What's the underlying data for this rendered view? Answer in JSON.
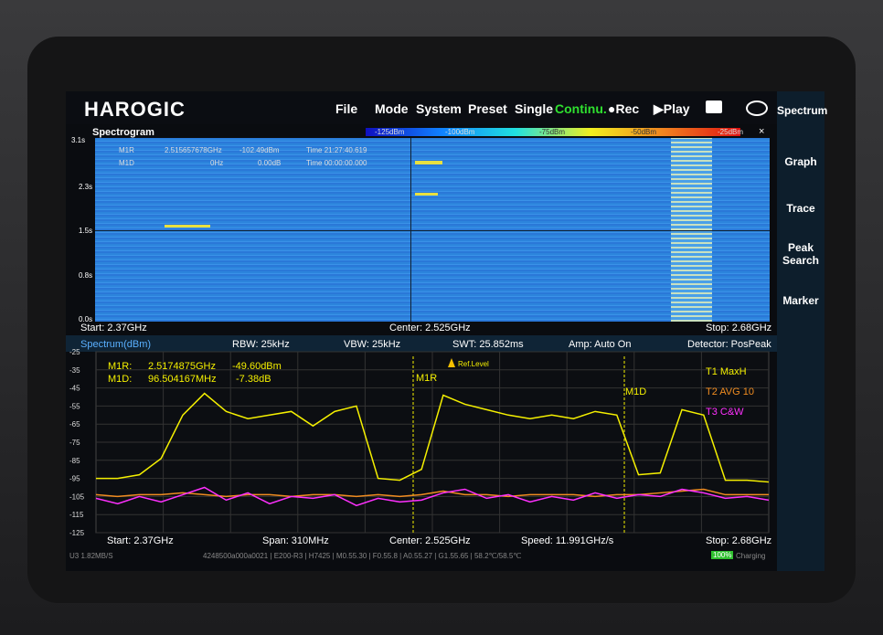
{
  "header": {
    "brand": "HAROGIC",
    "menu": [
      "File",
      "Mode",
      "System",
      "Preset",
      "Single",
      "Continu.",
      "●Rec",
      "▶Play"
    ]
  },
  "sidebar": [
    "Spectrum",
    "Graph",
    "Trace",
    "Peak Search",
    "Marker"
  ],
  "spectrogram": {
    "title": "Spectrogram",
    "close": "×",
    "scale": [
      "-125dBm",
      "-100dBm",
      "-75dBm",
      "-50dBm",
      "-25dBm"
    ],
    "time_ticks": [
      "3.1s",
      "2.3s",
      "1.5s",
      "0.8s",
      "0.0s"
    ],
    "markers": [
      [
        "M1R",
        "2.515657678GHz",
        "-102.49dBm",
        "Time 21:27:40.619"
      ],
      [
        "M1D",
        "0Hz",
        "0.00dB",
        "Time 00:00:00.000"
      ]
    ],
    "start": "Start: 2.37GHz",
    "center": "Center: 2.525GHz",
    "stop": "Stop: 2.68GHz"
  },
  "spectrum": {
    "title": "Spectrum(dBm)",
    "settings": [
      "RBW: 25kHz",
      "VBW: 25kHz",
      "SWT: 25.852ms",
      "Amp: Auto On",
      "Detector: PosPeak"
    ],
    "markers": [
      [
        "M1R:",
        "2.5174875GHz",
        "-49.60dBm"
      ],
      [
        "M1D:",
        "96.504167MHz",
        "-7.38dB"
      ]
    ],
    "marker_tags": [
      "M1R",
      "M1D"
    ],
    "ref_level": "Ref.Level",
    "ylim": [
      -125,
      -25
    ],
    "yticks": [
      -25,
      -35,
      -45,
      -55,
      -65,
      -75,
      -85,
      -95,
      -105,
      -115,
      -125
    ],
    "xlim": [
      2.37,
      2.68
    ],
    "x": [
      2.37,
      2.38,
      2.39,
      2.4,
      2.41,
      2.42,
      2.43,
      2.44,
      2.45,
      2.46,
      2.47,
      2.48,
      2.49,
      2.5,
      2.51,
      2.52,
      2.53,
      2.54,
      2.55,
      2.56,
      2.57,
      2.58,
      2.59,
      2.6,
      2.61,
      2.62,
      2.63,
      2.64,
      2.65,
      2.66,
      2.67,
      2.68
    ],
    "traces": [
      {
        "name": "T1  MaxH",
        "color": "#f5f000",
        "values": [
          -95,
          -95,
          -93,
          -84,
          -60,
          -48,
          -58,
          -62,
          -60,
          -58,
          -66,
          -58,
          -55,
          -95,
          -96,
          -90,
          -49,
          -54,
          -57,
          -60,
          -62,
          -60,
          -62,
          -58,
          -60,
          -93,
          -92,
          -57,
          -60,
          -96,
          -96,
          -97
        ]
      },
      {
        "name": "T2  AVG  10",
        "color": "#f08c20",
        "values": [
          -104,
          -105,
          -104,
          -104,
          -103,
          -104,
          -105,
          -104,
          -104,
          -105,
          -104,
          -104,
          -105,
          -104,
          -105,
          -104,
          -102,
          -104,
          -104,
          -105,
          -104,
          -104,
          -104,
          -105,
          -104,
          -104,
          -103,
          -102,
          -101,
          -104,
          -104,
          -104
        ]
      },
      {
        "name": "T3  C&W",
        "color": "#ff30ff",
        "values": [
          -106,
          -109,
          -105,
          -108,
          -104,
          -100,
          -107,
          -103,
          -109,
          -105,
          -106,
          -104,
          -110,
          -106,
          -108,
          -107,
          -103,
          -101,
          -106,
          -104,
          -108,
          -105,
          -107,
          -103,
          -106,
          -104,
          -105,
          -101,
          -103,
          -106,
          -105,
          -107
        ]
      }
    ],
    "start": "Start: 2.37GHz",
    "span": "Span: 310MHz",
    "center": "Center: 2.525GHz",
    "speed": "Speed: 11.991GHz/s",
    "stop": "Stop: 2.68GHz"
  },
  "status": {
    "rate": "U3 1.82MB/S",
    "info": "4248500a000a0021 | E200-R3 | H7425 | M0.55.30 | F0.55.8 | A0.55.27 | G1.55.65 | 58.2℃/58.5℃",
    "battery": "100%",
    "charging": "Charging"
  }
}
